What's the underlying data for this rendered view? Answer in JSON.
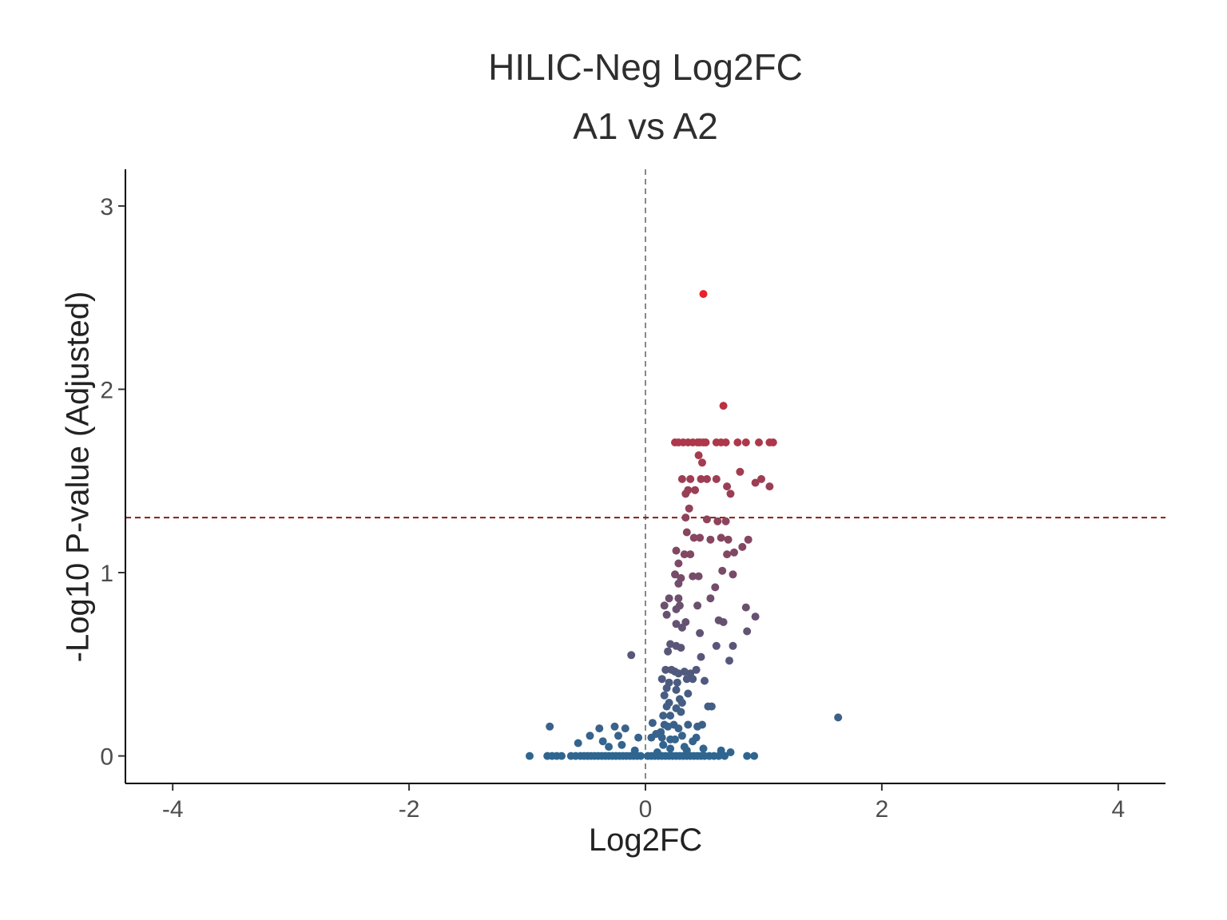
{
  "chart_data": {
    "type": "scatter",
    "title": "HILIC-Neg Log2FC",
    "subtitle": "A1 vs A2",
    "xlabel": "Log2FC",
    "ylabel": "-Log10 P-value (Adjusted)",
    "xlim": [
      -4.4,
      4.4
    ],
    "ylim": [
      -0.15,
      3.2
    ],
    "x_ticks": [
      -4,
      -2,
      0,
      2,
      4
    ],
    "x_tick_labels": [
      "-4",
      "-2",
      "0",
      "2",
      "4"
    ],
    "y_ticks": [
      0,
      1,
      2,
      3
    ],
    "y_tick_labels": [
      "0",
      "1",
      "2",
      "3"
    ],
    "grid": false,
    "legend": "none",
    "reference_lines": [
      {
        "orientation": "vertical",
        "value": 0,
        "style": "dashed",
        "color": "#888888"
      },
      {
        "orientation": "horizontal",
        "value": 1.3,
        "style": "dashed",
        "color": "#8b1a1a"
      }
    ],
    "color_low": "#2f6690",
    "color_high": "#e8222a",
    "points": [
      [
        0.49,
        2.52
      ],
      [
        0.66,
        1.91
      ],
      [
        0.25,
        1.71
      ],
      [
        0.28,
        1.71
      ],
      [
        0.32,
        1.71
      ],
      [
        0.36,
        1.71
      ],
      [
        0.4,
        1.71
      ],
      [
        0.44,
        1.71
      ],
      [
        0.46,
        1.71
      ],
      [
        0.49,
        1.71
      ],
      [
        0.51,
        1.71
      ],
      [
        0.6,
        1.71
      ],
      [
        0.64,
        1.71
      ],
      [
        0.68,
        1.71
      ],
      [
        0.78,
        1.71
      ],
      [
        0.85,
        1.71
      ],
      [
        0.96,
        1.71
      ],
      [
        1.05,
        1.71
      ],
      [
        1.08,
        1.71
      ],
      [
        0.45,
        1.64
      ],
      [
        0.48,
        1.6
      ],
      [
        0.8,
        1.55
      ],
      [
        0.31,
        1.51
      ],
      [
        0.38,
        1.51
      ],
      [
        0.47,
        1.51
      ],
      [
        0.52,
        1.51
      ],
      [
        0.6,
        1.51
      ],
      [
        0.93,
        1.49
      ],
      [
        0.98,
        1.51
      ],
      [
        0.69,
        1.47
      ],
      [
        1.05,
        1.47
      ],
      [
        0.36,
        1.45
      ],
      [
        0.42,
        1.45
      ],
      [
        0.34,
        1.43
      ],
      [
        0.72,
        1.43
      ],
      [
        0.37,
        1.35
      ],
      [
        0.34,
        1.3
      ],
      [
        0.52,
        1.29
      ],
      [
        0.61,
        1.28
      ],
      [
        0.68,
        1.28
      ],
      [
        0.35,
        1.22
      ],
      [
        0.41,
        1.19
      ],
      [
        0.46,
        1.19
      ],
      [
        0.55,
        1.18
      ],
      [
        0.64,
        1.19
      ],
      [
        0.7,
        1.18
      ],
      [
        0.87,
        1.18
      ],
      [
        0.82,
        1.14
      ],
      [
        0.26,
        1.12
      ],
      [
        0.33,
        1.1
      ],
      [
        0.38,
        1.1
      ],
      [
        0.69,
        1.1
      ],
      [
        0.75,
        1.11
      ],
      [
        0.28,
        1.05
      ],
      [
        0.65,
        1.01
      ],
      [
        0.74,
        0.99
      ],
      [
        0.25,
        0.99
      ],
      [
        0.3,
        0.97
      ],
      [
        0.4,
        0.98
      ],
      [
        0.45,
        0.98
      ],
      [
        0.28,
        0.94
      ],
      [
        0.59,
        0.92
      ],
      [
        0.2,
        0.86
      ],
      [
        0.28,
        0.86
      ],
      [
        0.55,
        0.86
      ],
      [
        0.16,
        0.82
      ],
      [
        0.29,
        0.82
      ],
      [
        0.44,
        0.82
      ],
      [
        0.85,
        0.81
      ],
      [
        0.26,
        0.8
      ],
      [
        0.18,
        0.77
      ],
      [
        0.93,
        0.76
      ],
      [
        0.62,
        0.74
      ],
      [
        0.34,
        0.73
      ],
      [
        0.66,
        0.73
      ],
      [
        0.26,
        0.72
      ],
      [
        0.31,
        0.7
      ],
      [
        0.46,
        0.67
      ],
      [
        0.86,
        0.68
      ],
      [
        0.21,
        0.61
      ],
      [
        0.26,
        0.6
      ],
      [
        0.19,
        0.57
      ],
      [
        0.3,
        0.59
      ],
      [
        0.6,
        0.6
      ],
      [
        0.74,
        0.6
      ],
      [
        0.47,
        0.54
      ],
      [
        0.71,
        0.52
      ],
      [
        -0.12,
        0.55
      ],
      [
        0.17,
        0.47
      ],
      [
        0.22,
        0.47
      ],
      [
        0.25,
        0.46
      ],
      [
        0.28,
        0.45
      ],
      [
        0.33,
        0.46
      ],
      [
        0.38,
        0.45
      ],
      [
        0.43,
        0.47
      ],
      [
        0.14,
        0.42
      ],
      [
        0.2,
        0.4
      ],
      [
        0.27,
        0.4
      ],
      [
        0.35,
        0.42
      ],
      [
        0.4,
        0.42
      ],
      [
        0.5,
        0.41
      ],
      [
        0.18,
        0.37
      ],
      [
        0.26,
        0.36
      ],
      [
        0.36,
        0.34
      ],
      [
        0.16,
        0.33
      ],
      [
        0.29,
        0.31
      ],
      [
        0.2,
        0.29
      ],
      [
        0.31,
        0.29
      ],
      [
        0.18,
        0.27
      ],
      [
        0.26,
        0.26
      ],
      [
        0.56,
        0.27
      ],
      [
        0.53,
        0.27
      ],
      [
        0.15,
        0.22
      ],
      [
        0.21,
        0.22
      ],
      [
        0.3,
        0.24
      ],
      [
        1.63,
        0.21
      ],
      [
        0.06,
        0.18
      ],
      [
        0.16,
        0.17
      ],
      [
        0.19,
        0.16
      ],
      [
        0.24,
        0.17
      ],
      [
        0.28,
        0.15
      ],
      [
        0.36,
        0.17
      ],
      [
        0.44,
        0.16
      ],
      [
        0.48,
        0.17
      ],
      [
        -0.81,
        0.16
      ],
      [
        -0.26,
        0.16
      ],
      [
        -0.39,
        0.15
      ],
      [
        -0.17,
        0.15
      ],
      [
        0.13,
        0.13
      ],
      [
        0.31,
        0.11
      ],
      [
        0.09,
        0.12
      ],
      [
        0.05,
        0.1
      ],
      [
        0.14,
        0.1
      ],
      [
        0.21,
        0.09
      ],
      [
        0.25,
        0.09
      ],
      [
        -0.47,
        0.11
      ],
      [
        -0.36,
        0.08
      ],
      [
        -0.23,
        0.11
      ],
      [
        -0.06,
        0.1
      ],
      [
        0.4,
        0.08
      ],
      [
        0.43,
        0.1
      ],
      [
        -0.57,
        0.07
      ],
      [
        -0.2,
        0.06
      ],
      [
        0.15,
        0.06
      ],
      [
        0.33,
        0.05
      ],
      [
        0.64,
        0.03
      ],
      [
        -0.31,
        0.05
      ],
      [
        0.21,
        0.04
      ],
      [
        0.35,
        0.03
      ],
      [
        0.49,
        0.04
      ],
      [
        0.72,
        0.02
      ],
      [
        -0.09,
        0.03
      ],
      [
        0.1,
        0.02
      ],
      [
        -0.98,
        0.0
      ],
      [
        -0.83,
        0.0
      ],
      [
        -0.79,
        0.0
      ],
      [
        -0.75,
        0.0
      ],
      [
        -0.71,
        0.0
      ],
      [
        -0.63,
        0.0
      ],
      [
        -0.59,
        0.0
      ],
      [
        -0.55,
        0.0
      ],
      [
        -0.52,
        0.0
      ],
      [
        -0.49,
        0.0
      ],
      [
        -0.46,
        0.0
      ],
      [
        -0.43,
        0.0
      ],
      [
        -0.4,
        0.0
      ],
      [
        -0.37,
        0.0
      ],
      [
        -0.34,
        0.0
      ],
      [
        -0.31,
        0.0
      ],
      [
        -0.28,
        0.0
      ],
      [
        -0.25,
        0.0
      ],
      [
        -0.22,
        0.0
      ],
      [
        -0.19,
        0.0
      ],
      [
        -0.16,
        0.0
      ],
      [
        -0.13,
        0.0
      ],
      [
        -0.1,
        0.0
      ],
      [
        -0.07,
        0.0
      ],
      [
        -0.04,
        0.0
      ],
      [
        0.02,
        0.0
      ],
      [
        0.05,
        0.0
      ],
      [
        0.08,
        0.0
      ],
      [
        0.11,
        0.0
      ],
      [
        0.14,
        0.0
      ],
      [
        0.17,
        0.0
      ],
      [
        0.2,
        0.0
      ],
      [
        0.23,
        0.0
      ],
      [
        0.26,
        0.0
      ],
      [
        0.29,
        0.0
      ],
      [
        0.32,
        0.0
      ],
      [
        0.35,
        0.0
      ],
      [
        0.38,
        0.0
      ],
      [
        0.41,
        0.0
      ],
      [
        0.44,
        0.0
      ],
      [
        0.47,
        0.0
      ],
      [
        0.5,
        0.0
      ],
      [
        0.54,
        0.0
      ],
      [
        0.58,
        0.0
      ],
      [
        0.62,
        0.0
      ],
      [
        0.67,
        0.0
      ],
      [
        0.86,
        0.0
      ],
      [
        0.92,
        0.0
      ]
    ]
  }
}
